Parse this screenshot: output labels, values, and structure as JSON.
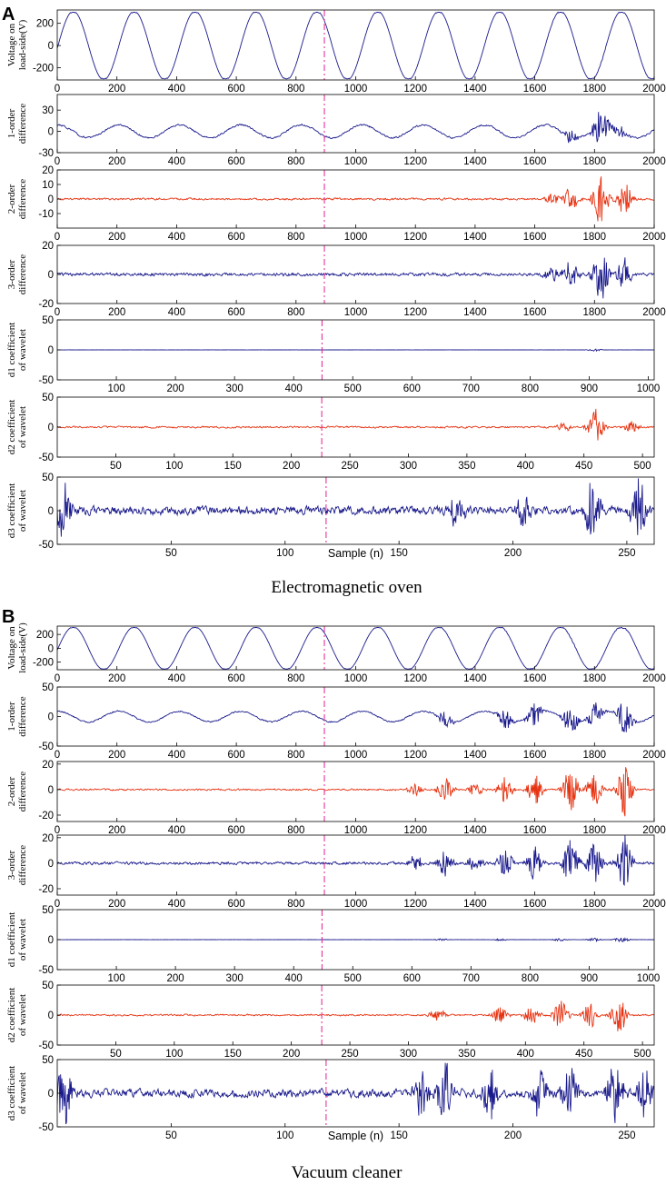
{
  "panels": [
    {
      "label": "A",
      "caption": "Electromagnetic oven",
      "xlabel": "Sample (n)",
      "chart_data": [
        {
          "type": "line",
          "key": "voltage",
          "ylabel": [
            "Voltage on",
            "load-side(V)"
          ],
          "xlim": [
            0,
            2000
          ],
          "ylim": [
            -310,
            320
          ],
          "xticks": [
            0,
            200,
            400,
            600,
            800,
            1000,
            1200,
            1400,
            1600,
            1800,
            2000
          ],
          "yticks": [
            -200,
            0,
            200
          ],
          "marker_x": 895,
          "color": "#1a1a8c",
          "periods": 9.8,
          "amplitude": 300,
          "phase": -0.08,
          "noise": 0.01,
          "bursts": [
            {
              "x": 1660,
              "a": 6
            },
            {
              "x": 1820,
              "a": 12
            }
          ]
        },
        {
          "type": "line",
          "key": "diff1",
          "ylabel": [
            "1-order",
            "difference"
          ],
          "xlim": [
            0,
            2000
          ],
          "ylim": [
            -30,
            52
          ],
          "xticks": [
            0,
            200,
            400,
            600,
            800,
            1000,
            1200,
            1400,
            1600,
            1800,
            2000
          ],
          "yticks": [
            -30,
            0,
            30
          ],
          "marker_x": 895,
          "color": "#1a1a8c",
          "periods": 9.8,
          "amplitude": 9,
          "phase": 1.5,
          "noise": 1.8,
          "bursts": [
            {
              "x": 1720,
              "a": 10
            },
            {
              "x": 1820,
              "a": 28
            },
            {
              "x": 1880,
              "a": 10
            }
          ]
        },
        {
          "type": "line",
          "key": "diff2",
          "ylabel": [
            "2-order",
            "difference"
          ],
          "xlim": [
            0,
            2000
          ],
          "ylim": [
            -20,
            20
          ],
          "xticks": [
            0,
            200,
            400,
            600,
            800,
            1000,
            1200,
            1400,
            1600,
            1800,
            2000
          ],
          "yticks": [
            -10,
            0,
            10,
            20
          ],
          "marker_x": 895,
          "color": "#e63312",
          "periods": 0,
          "amplitude": 0,
          "phase": 0,
          "noise": 1.0,
          "bursts": [
            {
              "x": 1660,
              "a": 4
            },
            {
              "x": 1720,
              "a": 9
            },
            {
              "x": 1820,
              "a": 19
            },
            {
              "x": 1900,
              "a": 12
            }
          ]
        },
        {
          "type": "line",
          "key": "diff3",
          "ylabel": [
            "3-order",
            "difference"
          ],
          "xlim": [
            0,
            2000
          ],
          "ylim": [
            -20,
            20
          ],
          "xticks": [
            0,
            200,
            400,
            600,
            800,
            1000,
            1200,
            1400,
            1600,
            1800,
            2000
          ],
          "yticks": [
            -20,
            0,
            20
          ],
          "marker_x": 895,
          "color": "#1a1a8c",
          "periods": 0,
          "amplitude": 0,
          "phase": 0,
          "noise": 1.6,
          "bursts": [
            {
              "x": 1660,
              "a": 6
            },
            {
              "x": 1720,
              "a": 10
            },
            {
              "x": 1820,
              "a": 19
            },
            {
              "x": 1900,
              "a": 12
            }
          ]
        },
        {
          "type": "line",
          "key": "d1",
          "ylabel": [
            "d1 coefficient",
            "of wavelet"
          ],
          "xlim": [
            0,
            1010
          ],
          "ylim": [
            -50,
            50
          ],
          "xticks": [
            100,
            200,
            300,
            400,
            500,
            600,
            700,
            800,
            900,
            1000
          ],
          "yticks": [
            -50,
            0,
            50
          ],
          "marker_x": 448,
          "color": "#1a1a8c",
          "periods": 0,
          "amplitude": 0,
          "phase": 0,
          "noise": 0.2,
          "bursts": [
            {
              "x": 910,
              "a": 2
            }
          ]
        },
        {
          "type": "line",
          "key": "d2",
          "ylabel": [
            "d2 coefficient",
            "of wavelet"
          ],
          "xlim": [
            0,
            510
          ],
          "ylim": [
            -50,
            50
          ],
          "xticks": [
            50,
            100,
            150,
            200,
            250,
            300,
            350,
            400,
            450,
            500
          ],
          "yticks": [
            -50,
            0,
            50
          ],
          "marker_x": 226,
          "color": "#e63312",
          "periods": 0,
          "amplitude": 0,
          "phase": 0,
          "noise": 2.2,
          "bursts": [
            {
              "x": 433,
              "a": 8
            },
            {
              "x": 460,
              "a": 30
            },
            {
              "x": 490,
              "a": 10
            }
          ]
        },
        {
          "type": "line",
          "key": "d3",
          "ylabel": [
            "d3 coefficient",
            "of wavelet"
          ],
          "xlim": [
            0,
            262
          ],
          "ylim": [
            -50,
            50
          ],
          "xticks": [
            50,
            100,
            150,
            200,
            250
          ],
          "yticks": [
            -50,
            0,
            50
          ],
          "marker_x": 118,
          "color": "#1a1a8c",
          "periods": 0,
          "amplitude": 0,
          "phase": 0,
          "noise": 9,
          "bursts": [
            {
              "x": 3,
              "a": 45
            },
            {
              "x": 175,
              "a": 22
            },
            {
              "x": 205,
              "a": 30
            },
            {
              "x": 235,
              "a": 50
            },
            {
              "x": 255,
              "a": 50
            }
          ]
        }
      ]
    },
    {
      "label": "B",
      "caption": "Vacuum cleaner",
      "xlabel": "Sample (n)",
      "chart_data": [
        {
          "type": "line",
          "key": "voltage",
          "ylabel": [
            "Voltage on",
            "load-side(V)"
          ],
          "xlim": [
            0,
            2000
          ],
          "ylim": [
            -310,
            320
          ],
          "xticks": [
            0,
            200,
            400,
            600,
            800,
            1000,
            1200,
            1400,
            1600,
            1800,
            2000
          ],
          "yticks": [
            -200,
            0,
            200
          ],
          "marker_x": 895,
          "color": "#1a1a8c",
          "periods": 9.8,
          "amplitude": 300,
          "phase": -0.08,
          "noise": 0.01,
          "bursts": [
            {
              "x": 1300,
              "a": 10
            },
            {
              "x": 1500,
              "a": 12
            },
            {
              "x": 1600,
              "a": 14
            },
            {
              "x": 1720,
              "a": 18
            },
            {
              "x": 1800,
              "a": 16
            },
            {
              "x": 1900,
              "a": 22
            }
          ]
        },
        {
          "type": "line",
          "key": "diff1",
          "ylabel": [
            "1-order",
            "difference"
          ],
          "xlim": [
            0,
            2000
          ],
          "ylim": [
            -50,
            50
          ],
          "xticks": [
            0,
            200,
            400,
            600,
            800,
            1000,
            1200,
            1400,
            1600,
            1800,
            2000
          ],
          "yticks": [
            -50,
            0,
            50
          ],
          "marker_x": 895,
          "color": "#1a1a8c",
          "periods": 9.8,
          "amplitude": 9,
          "phase": 1.5,
          "noise": 1.8,
          "bursts": [
            {
              "x": 1300,
              "a": 14
            },
            {
              "x": 1500,
              "a": 16
            },
            {
              "x": 1600,
              "a": 20
            },
            {
              "x": 1720,
              "a": 24
            },
            {
              "x": 1800,
              "a": 22
            },
            {
              "x": 1900,
              "a": 28
            }
          ]
        },
        {
          "type": "line",
          "key": "diff2",
          "ylabel": [
            "2-order",
            "difference"
          ],
          "xlim": [
            0,
            2000
          ],
          "ylim": [
            -25,
            22
          ],
          "xticks": [
            0,
            200,
            400,
            600,
            800,
            1000,
            1200,
            1400,
            1600,
            1800,
            2000
          ],
          "yticks": [
            -20,
            0,
            20
          ],
          "marker_x": 895,
          "color": "#e63312",
          "periods": 0,
          "amplitude": 0,
          "phase": 0,
          "noise": 1.0,
          "bursts": [
            {
              "x": 1200,
              "a": 5
            },
            {
              "x": 1300,
              "a": 9
            },
            {
              "x": 1400,
              "a": 5
            },
            {
              "x": 1500,
              "a": 10
            },
            {
              "x": 1600,
              "a": 12
            },
            {
              "x": 1720,
              "a": 17
            },
            {
              "x": 1800,
              "a": 15
            },
            {
              "x": 1900,
              "a": 22
            }
          ]
        },
        {
          "type": "line",
          "key": "diff3",
          "ylabel": [
            "3-order",
            "difference"
          ],
          "xlim": [
            0,
            2000
          ],
          "ylim": [
            -25,
            22
          ],
          "xticks": [
            0,
            200,
            400,
            600,
            800,
            1000,
            1200,
            1400,
            1600,
            1800,
            2000
          ],
          "yticks": [
            -20,
            0,
            20
          ],
          "marker_x": 895,
          "color": "#1a1a8c",
          "periods": 0,
          "amplitude": 0,
          "phase": 0,
          "noise": 1.6,
          "bursts": [
            {
              "x": 1200,
              "a": 6
            },
            {
              "x": 1300,
              "a": 10
            },
            {
              "x": 1400,
              "a": 6
            },
            {
              "x": 1500,
              "a": 12
            },
            {
              "x": 1600,
              "a": 14
            },
            {
              "x": 1720,
              "a": 18
            },
            {
              "x": 1800,
              "a": 16
            },
            {
              "x": 1900,
              "a": 22
            }
          ]
        },
        {
          "type": "line",
          "key": "d1",
          "ylabel": [
            "d1 coefficient",
            "of wavelet"
          ],
          "xlim": [
            0,
            1010
          ],
          "ylim": [
            -50,
            50
          ],
          "xticks": [
            100,
            200,
            300,
            400,
            500,
            600,
            700,
            800,
            900,
            1000
          ],
          "yticks": [
            -50,
            0,
            50
          ],
          "marker_x": 448,
          "color": "#1a1a8c",
          "periods": 0,
          "amplitude": 0,
          "phase": 0,
          "noise": 0.25,
          "bursts": [
            {
              "x": 650,
              "a": 1.5
            },
            {
              "x": 750,
              "a": 1.5
            },
            {
              "x": 850,
              "a": 2.5
            },
            {
              "x": 910,
              "a": 3
            },
            {
              "x": 955,
              "a": 4
            }
          ]
        },
        {
          "type": "line",
          "key": "d2",
          "ylabel": [
            "d2 coefficient",
            "of wavelet"
          ],
          "xlim": [
            0,
            510
          ],
          "ylim": [
            -50,
            50
          ],
          "xticks": [
            50,
            100,
            150,
            200,
            250,
            300,
            350,
            400,
            450,
            500
          ],
          "yticks": [
            -50,
            0,
            50
          ],
          "marker_x": 226,
          "color": "#e63312",
          "periods": 0,
          "amplitude": 0,
          "phase": 0,
          "noise": 2.0,
          "bursts": [
            {
              "x": 325,
              "a": 12
            },
            {
              "x": 378,
              "a": 14
            },
            {
              "x": 405,
              "a": 15
            },
            {
              "x": 430,
              "a": 25
            },
            {
              "x": 455,
              "a": 22
            },
            {
              "x": 480,
              "a": 32
            }
          ]
        },
        {
          "type": "line",
          "key": "d3",
          "ylabel": [
            "d3 coefficient",
            "of wavelet"
          ],
          "xlim": [
            0,
            262
          ],
          "ylim": [
            -50,
            50
          ],
          "xticks": [
            50,
            100,
            150,
            200,
            250
          ],
          "yticks": [
            -50,
            0,
            50
          ],
          "marker_x": 118,
          "color": "#1a1a8c",
          "periods": 0,
          "amplitude": 0,
          "phase": 0,
          "noise": 9,
          "bursts": [
            {
              "x": 3,
              "a": 50
            },
            {
              "x": 160,
              "a": 40
            },
            {
              "x": 170,
              "a": 50
            },
            {
              "x": 190,
              "a": 45
            },
            {
              "x": 212,
              "a": 45
            },
            {
              "x": 225,
              "a": 50
            },
            {
              "x": 245,
              "a": 50
            },
            {
              "x": 258,
              "a": 45
            }
          ]
        }
      ]
    }
  ]
}
